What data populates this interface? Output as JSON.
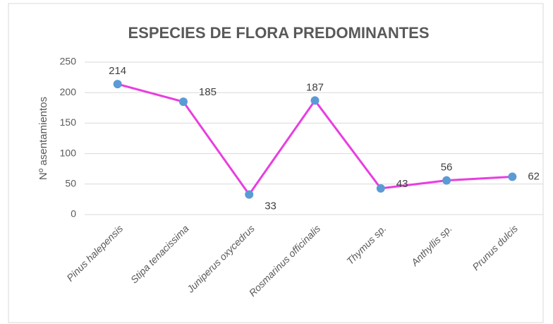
{
  "chart_data": {
    "type": "line",
    "title": "ESPECIES DE FLORA PREDOMINANTES",
    "y_label": "Nº asentamientos",
    "categories": [
      "Pinus halepensis",
      "Stipa tenacissima",
      "Juniperus oxycedrus",
      "Rosmarinus officinalis",
      "Thymus sp.",
      "Anthyllis sp.",
      "Prunus dulcis"
    ],
    "values": [
      214,
      185,
      33,
      187,
      43,
      56,
      62
    ],
    "line_color": "#e83ee0",
    "marker_color": "#5b9bd5",
    "ylim": [
      0,
      250
    ],
    "yticks": [
      0,
      50,
      100,
      150,
      200,
      250
    ],
    "grid": true
  }
}
